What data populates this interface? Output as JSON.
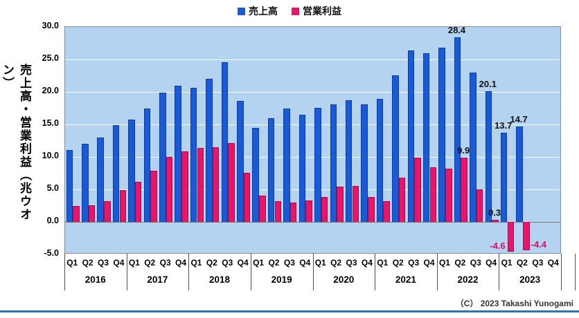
{
  "legend": {
    "revenue_label": "売上高",
    "profit_label": "営業利益"
  },
  "y_axis": {
    "title": "売上高・営業利益（兆ウオン）",
    "tick_labels": [
      "30.0",
      "25.0",
      "20.0",
      "15.0",
      "10.0",
      "5.0",
      "0.0",
      "-5.0"
    ],
    "tick_values": [
      30,
      25,
      20,
      15,
      10,
      5,
      0,
      -5
    ]
  },
  "copyright": "（C） 2023 Takashi Yunogami",
  "colors": {
    "revenue": "#1a5ad6",
    "profit": "#e8156b",
    "plot_bg": "#b3d3f0",
    "label_black": "#111111",
    "label_crimson": "#d6125f",
    "bottom_rule": "#2e73b8"
  },
  "chart_data": {
    "type": "bar",
    "title": "",
    "ylabel": "売上高・営業利益（兆ウオン）",
    "ylim": [
      -5,
      30
    ],
    "grid": true,
    "legend_position": "top",
    "years": [
      "2016",
      "2017",
      "2018",
      "2019",
      "2020",
      "2021",
      "2022",
      "2023"
    ],
    "quarters": [
      "Q1",
      "Q2",
      "Q3",
      "Q4"
    ],
    "categories": [
      "2016 Q1",
      "2016 Q2",
      "2016 Q3",
      "2016 Q4",
      "2017 Q1",
      "2017 Q2",
      "2017 Q3",
      "2017 Q4",
      "2018 Q1",
      "2018 Q2",
      "2018 Q3",
      "2018 Q4",
      "2019 Q1",
      "2019 Q2",
      "2019 Q3",
      "2019 Q4",
      "2020 Q1",
      "2020 Q2",
      "2020 Q3",
      "2020 Q4",
      "2021 Q1",
      "2021 Q2",
      "2021 Q3",
      "2021 Q4",
      "2022 Q1",
      "2022 Q2",
      "2022 Q3",
      "2022 Q4",
      "2023 Q1",
      "2023 Q2",
      "2023 Q3",
      "2023 Q4"
    ],
    "series": [
      {
        "name": "売上高",
        "color": "#1a5ad6",
        "values": [
          11.1,
          12.0,
          13.0,
          14.9,
          15.7,
          17.5,
          19.9,
          21.0,
          20.6,
          22.0,
          24.6,
          18.6,
          14.5,
          16.0,
          17.4,
          16.5,
          17.6,
          18.1,
          18.7,
          18.1,
          18.9,
          22.6,
          26.4,
          26.0,
          26.8,
          28.4,
          23.0,
          20.1,
          13.7,
          14.7,
          null,
          null
        ]
      },
      {
        "name": "営業利益",
        "color": "#e8156b",
        "values": [
          2.5,
          2.6,
          3.2,
          4.9,
          6.2,
          7.9,
          10.0,
          10.8,
          11.4,
          11.5,
          12.1,
          7.6,
          4.0,
          3.2,
          3.0,
          3.3,
          3.8,
          5.4,
          5.5,
          3.8,
          3.2,
          6.8,
          9.9,
          8.4,
          8.2,
          9.9,
          5.0,
          0.3,
          -4.6,
          -4.4,
          null,
          null
        ]
      }
    ],
    "annotations": [
      {
        "text": "28.4",
        "series": 0,
        "index": 25,
        "color": "#111111",
        "placement": "above"
      },
      {
        "text": "20.1",
        "series": 0,
        "index": 27,
        "color": "#111111",
        "placement": "above"
      },
      {
        "text": "13.7",
        "series": 0,
        "index": 28,
        "color": "#111111",
        "placement": "above"
      },
      {
        "text": "14.7",
        "series": 0,
        "index": 29,
        "color": "#111111",
        "placement": "above"
      },
      {
        "text": "9.9",
        "series": 1,
        "index": 25,
        "color": "#111111",
        "placement": "above"
      },
      {
        "text": "0.3",
        "series": 1,
        "index": 27,
        "color": "#111111",
        "placement": "above"
      },
      {
        "text": "-4.6",
        "series": 1,
        "index": 28,
        "color": "#d6125f",
        "placement": "left-of-bottom"
      },
      {
        "text": "-4.4",
        "series": 1,
        "index": 29,
        "color": "#d6125f",
        "placement": "right-of-bottom"
      }
    ]
  }
}
